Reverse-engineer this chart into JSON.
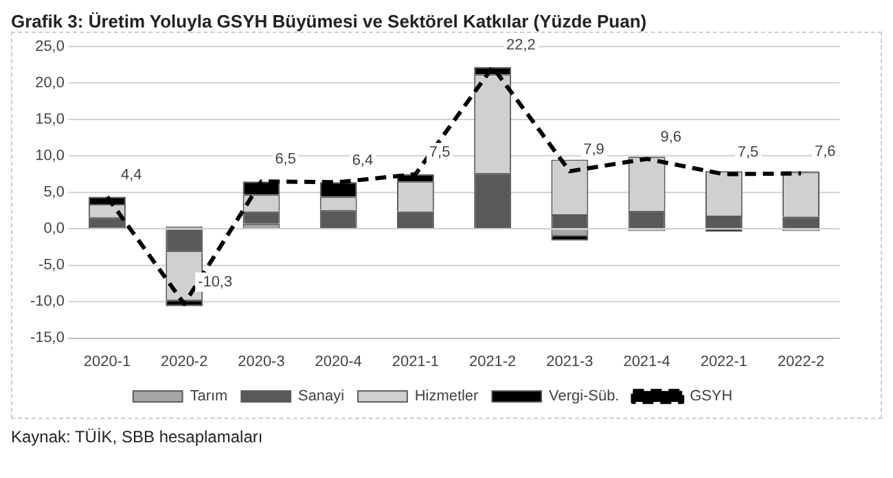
{
  "chart_data": {
    "type": "bar",
    "stacked": true,
    "title": "Grafik 3: Üretim Yoluyla GSYH Büyümesi ve Sektörel Katkılar (Yüzde Puan)",
    "categories": [
      "2020-1",
      "2020-2",
      "2020-3",
      "2020-4",
      "2021-1",
      "2021-2",
      "2021-3",
      "2021-4",
      "2022-1",
      "2022-2"
    ],
    "series": [
      {
        "name": "Tarım",
        "color": "#a6a6a6",
        "values": [
          0.2,
          0.3,
          0.7,
          0.1,
          0.1,
          0.0,
          -1.0,
          -0.3,
          0.0,
          -0.3
        ]
      },
      {
        "name": "Sanayi",
        "color": "#595959",
        "values": [
          1.4,
          -3.2,
          1.7,
          2.5,
          2.3,
          7.7,
          2.0,
          2.5,
          1.8,
          1.7
        ]
      },
      {
        "name": "Hizmetler",
        "color": "#d0d0d0",
        "values": [
          1.8,
          -6.7,
          2.3,
          1.8,
          4.1,
          13.5,
          7.5,
          7.4,
          6.1,
          6.1
        ]
      },
      {
        "name": "Vergi-Süb.",
        "color": "#000000",
        "values": [
          1.0,
          -0.7,
          1.8,
          2.0,
          1.0,
          1.0,
          -0.6,
          0.0,
          -0.4,
          0.1
        ]
      },
      {
        "name": "GSYH",
        "type": "line",
        "color": "#000000",
        "line_style": "dashed",
        "marker": "none",
        "values": [
          4.4,
          -10.3,
          6.5,
          6.4,
          7.5,
          22.2,
          7.9,
          9.6,
          7.5,
          7.6
        ],
        "value_labels": [
          "4,4",
          "-10,3",
          "6,5",
          "6,4",
          "7,5",
          "22,2",
          "7,9",
          "9,6",
          "7,5",
          "7,6"
        ]
      }
    ],
    "ylim": [
      -15,
      25
    ],
    "yticks": [
      {
        "value": -15,
        "label": "-15,0"
      },
      {
        "value": -10,
        "label": "-10,0"
      },
      {
        "value": -5,
        "label": "-5,0"
      },
      {
        "value": 0,
        "label": "0,0"
      },
      {
        "value": 5,
        "label": "5,0"
      },
      {
        "value": 10,
        "label": "10,0"
      },
      {
        "value": 15,
        "label": "15,0"
      },
      {
        "value": 20,
        "label": "20,0"
      },
      {
        "value": 25,
        "label": "25,0"
      }
    ],
    "grid": "y",
    "legend": "bottom",
    "annotations": [
      "Kaynak: TÜİK, SBB hesaplamaları"
    ]
  }
}
